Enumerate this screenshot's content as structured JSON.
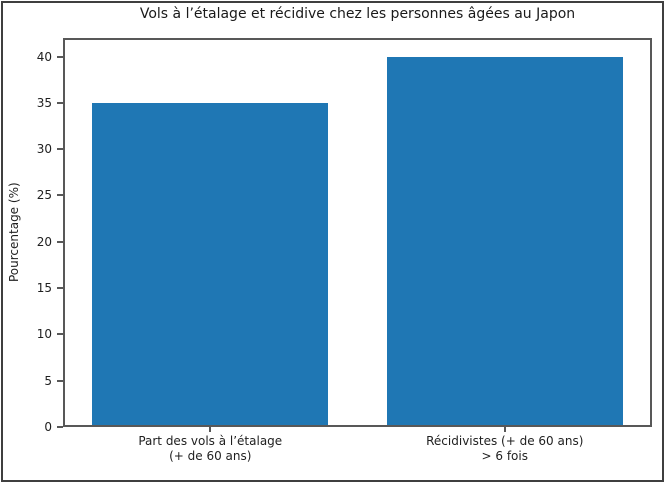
{
  "figure": {
    "background": "#ffffff",
    "frame_border_color": "#3f3f3f",
    "spine_color": "#585858",
    "text_color": "#1f1f1f"
  },
  "chart_data": {
    "type": "bar",
    "title": "Vols à l’étalage et récidive chez les personnes âgées au Japon",
    "categories": [
      "Part des vols à l’étalage\n(+ de 60 ans)",
      "Récidivistes (+ de 60 ans)\n> 6 fois"
    ],
    "values": [
      35,
      40
    ],
    "xlabel": "",
    "ylabel": "Pourcentage (%)",
    "ylim": [
      0,
      42
    ],
    "yticks": [
      0,
      5,
      10,
      15,
      20,
      25,
      30,
      35,
      40
    ],
    "bar_color": "#1f77b4",
    "bar_width_fraction": 0.8,
    "grid": false,
    "legend": null
  }
}
